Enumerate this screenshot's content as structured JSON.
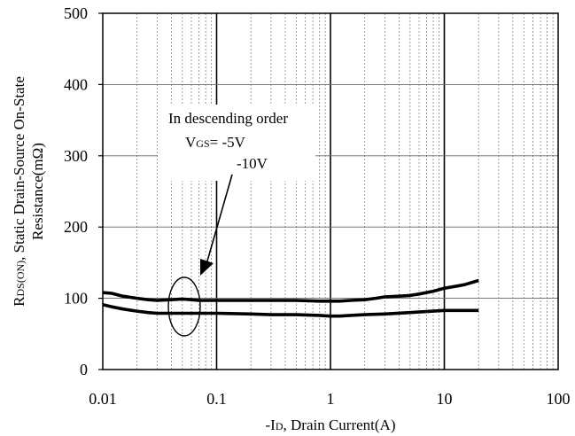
{
  "chart_data": {
    "type": "line",
    "title": "",
    "xscale": "log",
    "xlim": [
      0.01,
      100
    ],
    "ylim": [
      0,
      500
    ],
    "x_ticks": [
      "0.01",
      "0.1",
      "1",
      "10",
      "100"
    ],
    "y_ticks": [
      "0",
      "100",
      "200",
      "300",
      "400",
      "500"
    ],
    "xlabel": {
      "prefix": "-I",
      "sub": "D",
      "suffix": ", Drain Current(A)"
    },
    "ylabel": {
      "line1_prefix": "R",
      "line1_sub": "DS(ON)",
      "line1_suffix": ", Static Drain-Source On-State",
      "line2": "Resistance(mΩ)"
    },
    "grid": true,
    "series": [
      {
        "x": [
          0.01,
          0.012,
          0.015,
          0.02,
          0.025,
          0.03,
          0.04,
          0.05,
          0.06,
          0.07,
          0.1,
          0.2,
          0.5,
          0.8,
          1,
          1.2,
          1.5,
          2,
          2.5,
          3,
          4,
          5,
          6,
          8,
          10,
          15,
          20
        ],
        "values": [
          108,
          107,
          103,
          100,
          98,
          97,
          98,
          99,
          98,
          97,
          97,
          97,
          97,
          96,
          96,
          96,
          97,
          98,
          100,
          102,
          103,
          104,
          106,
          110,
          114,
          119,
          125
        ]
      },
      {
        "x": [
          0.01,
          0.012,
          0.015,
          0.02,
          0.025,
          0.03,
          0.05,
          0.1,
          0.2,
          0.3,
          0.5,
          0.8,
          1,
          1.2,
          1.5,
          2,
          3,
          5,
          8,
          10,
          20
        ],
        "values": [
          91,
          88,
          85,
          82,
          80,
          79,
          79,
          79,
          78,
          77,
          77,
          76,
          75,
          75,
          76,
          77,
          78,
          80,
          82,
          83,
          83
        ]
      }
    ],
    "annotation": {
      "line1": "In descending order",
      "vgs_prefix": "V",
      "vgs_sub": "GS",
      "vgs_value": "= -5V",
      "line3": "-10V"
    }
  }
}
